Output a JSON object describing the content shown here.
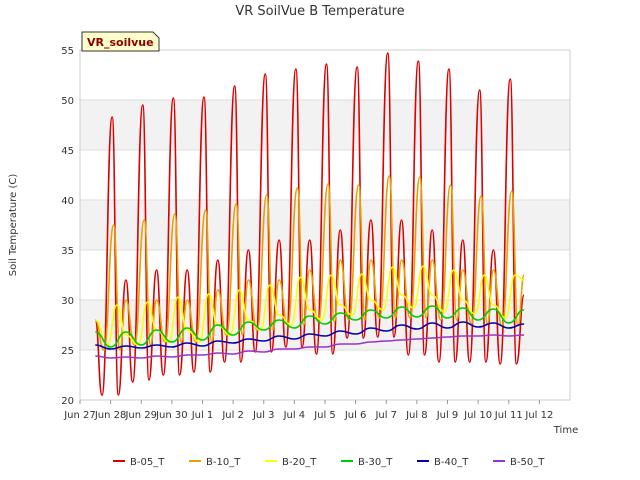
{
  "chart_data": {
    "type": "line",
    "title": "VR SoilVue B Temperature",
    "xlabel": "Time",
    "ylabel": "Soil Temperature (C)",
    "site_label": "VR_soilvue",
    "ylim": [
      20,
      55
    ],
    "yticks": [
      20,
      25,
      30,
      35,
      40,
      45,
      50,
      55
    ],
    "xlim": [
      0,
      16
    ],
    "xticks": [
      {
        "pos": 0,
        "label": "Jun 27"
      },
      {
        "pos": 1,
        "label": "Jun 28"
      },
      {
        "pos": 2,
        "label": "Jun 29"
      },
      {
        "pos": 3,
        "label": "Jun 30"
      },
      {
        "pos": 4,
        "label": "Jul 1"
      },
      {
        "pos": 5,
        "label": "Jul 2"
      },
      {
        "pos": 6,
        "label": "Jul 3"
      },
      {
        "pos": 7,
        "label": "Jul 4"
      },
      {
        "pos": 8,
        "label": "Jul 5"
      },
      {
        "pos": 9,
        "label": "Jul 6"
      },
      {
        "pos": 10,
        "label": "Jul 7"
      },
      {
        "pos": 11,
        "label": "Jul 8"
      },
      {
        "pos": 12,
        "label": "Jul 9"
      },
      {
        "pos": 13,
        "label": "Jul 10"
      },
      {
        "pos": 14,
        "label": "Jul 11"
      },
      {
        "pos": 15,
        "label": "Jul 12"
      }
    ],
    "grid": true,
    "legend_position": "bottom",
    "x_unit": "days since Jun 27 00:00",
    "series": [
      {
        "name": "B-05_T",
        "color": "#dd0000",
        "x": [
          0.5,
          0.72,
          1.05,
          1.25,
          1.5,
          1.72,
          2.05,
          2.25,
          2.5,
          2.72,
          3.05,
          3.25,
          3.5,
          3.72,
          4.05,
          4.25,
          4.5,
          4.72,
          5.05,
          5.25,
          5.5,
          5.72,
          6.05,
          6.25,
          6.5,
          6.72,
          7.05,
          7.25,
          7.5,
          7.72,
          8.05,
          8.25,
          8.5,
          8.72,
          9.05,
          9.25,
          9.5,
          9.72,
          10.05,
          10.25,
          10.5,
          10.72,
          11.05,
          11.25,
          11.5,
          11.72,
          12.05,
          12.25,
          12.5,
          12.72,
          13.05,
          13.25,
          13.5,
          13.72,
          14.05,
          14.25,
          14.5
        ],
        "y": [
          28,
          20.5,
          48.3,
          20.5,
          32,
          21.8,
          49.5,
          22,
          33,
          22.5,
          50.2,
          22.5,
          33,
          22.8,
          50.3,
          22.8,
          34,
          23.8,
          51.4,
          23.8,
          35,
          24.8,
          52.6,
          24.8,
          36,
          25.3,
          53.1,
          25.3,
          36,
          24.6,
          53.6,
          24.6,
          37,
          26.2,
          53.3,
          26.2,
          38,
          26.3,
          54.7,
          26.3,
          38,
          24.5,
          53.9,
          24.5,
          37,
          23.8,
          53.1,
          23.8,
          36,
          23.8,
          51,
          23.8,
          35,
          23.6,
          52.1,
          23.6,
          30.5
        ]
      },
      {
        "name": "B-10_T",
        "color": "#e8a000",
        "x": [
          0.5,
          0.78,
          1.1,
          1.3,
          1.5,
          1.78,
          2.1,
          2.3,
          2.5,
          2.78,
          3.1,
          3.3,
          3.5,
          3.78,
          4.1,
          4.3,
          4.5,
          4.78,
          5.1,
          5.3,
          5.5,
          5.78,
          6.1,
          6.3,
          6.5,
          6.78,
          7.1,
          7.3,
          7.5,
          7.78,
          8.1,
          8.3,
          8.5,
          8.78,
          9.1,
          9.3,
          9.5,
          9.78,
          10.1,
          10.3,
          10.5,
          10.78,
          11.1,
          11.3,
          11.5,
          11.78,
          12.1,
          12.3,
          12.5,
          12.78,
          13.1,
          13.3,
          13.5,
          13.78,
          14.1,
          14.3,
          14.5
        ],
        "y": [
          28,
          25,
          37.5,
          25,
          30,
          25.5,
          38,
          25.5,
          30,
          25.8,
          38.6,
          25.8,
          30,
          25.8,
          39,
          25.8,
          31,
          26.5,
          39.6,
          26.5,
          32,
          27,
          40.5,
          27,
          32,
          27.5,
          41.2,
          27.5,
          33,
          27.8,
          41.6,
          27.8,
          34,
          28,
          41.5,
          28,
          34,
          28.2,
          42.4,
          28.2,
          34,
          28.2,
          42.3,
          28.2,
          34,
          28,
          41.5,
          28,
          33,
          27.6,
          40.4,
          27.6,
          33,
          27.4,
          40.9,
          27.4,
          32.5
        ]
      },
      {
        "name": "B-20_T",
        "color": "#ffff00",
        "x": [
          0.5,
          0.9,
          1.2,
          1.5,
          1.9,
          2.2,
          2.5,
          2.9,
          3.2,
          3.5,
          3.9,
          4.2,
          4.5,
          4.9,
          5.2,
          5.5,
          5.9,
          6.2,
          6.5,
          6.9,
          7.2,
          7.5,
          7.9,
          8.2,
          8.5,
          8.9,
          9.2,
          9.5,
          9.9,
          10.2,
          10.5,
          10.9,
          11.2,
          11.5,
          11.9,
          12.2,
          12.5,
          12.9,
          13.2,
          13.5,
          13.9,
          14.2,
          14.5
        ],
        "y": [
          28,
          25.5,
          29.5,
          26.5,
          25.5,
          29.8,
          27,
          25.8,
          30.3,
          27,
          25.8,
          30.6,
          27.5,
          26.5,
          31,
          28,
          27,
          31.5,
          28.5,
          27.5,
          32.3,
          29,
          28,
          32.5,
          29.5,
          28.5,
          32.6,
          30,
          29,
          33.3,
          30.5,
          29.2,
          33.4,
          30.5,
          28.8,
          33,
          30,
          28.6,
          32.5,
          29.5,
          28.2,
          32.5,
          32
        ]
      },
      {
        "name": "B-30_T",
        "color": "#00cc00",
        "x": [
          0.5,
          1,
          1.5,
          2,
          2.5,
          3,
          3.5,
          4,
          4.5,
          5,
          5.5,
          6,
          6.5,
          7,
          7.5,
          8,
          8.5,
          9,
          9.5,
          10,
          10.5,
          11,
          11.5,
          12,
          12.5,
          13,
          13.5,
          14,
          14.5
        ],
        "y": [
          26.8,
          25.3,
          26.8,
          25.5,
          27,
          25.8,
          27.2,
          26,
          27.5,
          26.5,
          27.8,
          27,
          28,
          27.2,
          28.4,
          27.6,
          28.7,
          28,
          29,
          28.2,
          29.3,
          28.3,
          29.4,
          28.2,
          29.2,
          28,
          29.1,
          27.7,
          29
        ]
      },
      {
        "name": "B-40_T",
        "color": "#0000aa",
        "x": [
          0.5,
          1,
          1.5,
          2,
          2.5,
          3,
          3.5,
          4,
          4.5,
          5,
          5.5,
          6,
          6.5,
          7,
          7.5,
          8,
          8.5,
          9,
          9.5,
          10,
          10.5,
          11,
          11.5,
          12,
          12.5,
          13,
          13.5,
          14,
          14.5
        ],
        "y": [
          25.5,
          25.1,
          25.4,
          25.2,
          25.5,
          25.3,
          25.7,
          25.4,
          25.9,
          25.7,
          26.1,
          25.9,
          26.4,
          26.1,
          26.6,
          26.4,
          26.9,
          26.6,
          27.2,
          26.9,
          27.5,
          27.1,
          27.7,
          27.2,
          27.8,
          27.3,
          27.7,
          27.2,
          27.6
        ]
      },
      {
        "name": "B-50_T",
        "color": "#9933cc",
        "x": [
          0.5,
          1,
          1.5,
          2,
          2.5,
          3,
          3.5,
          4,
          4.5,
          5,
          5.5,
          6,
          6.5,
          7,
          7.5,
          8,
          8.5,
          9,
          9.5,
          10,
          10.5,
          11,
          11.5,
          12,
          12.5,
          13,
          13.5,
          14,
          14.5
        ],
        "y": [
          24.4,
          24.2,
          24.3,
          24.2,
          24.4,
          24.3,
          24.5,
          24.5,
          24.7,
          24.6,
          24.9,
          24.8,
          25.1,
          25.1,
          25.3,
          25.3,
          25.6,
          25.6,
          25.8,
          25.9,
          26,
          26.1,
          26.2,
          26.3,
          26.4,
          26.4,
          26.5,
          26.4,
          26.5
        ]
      }
    ]
  }
}
